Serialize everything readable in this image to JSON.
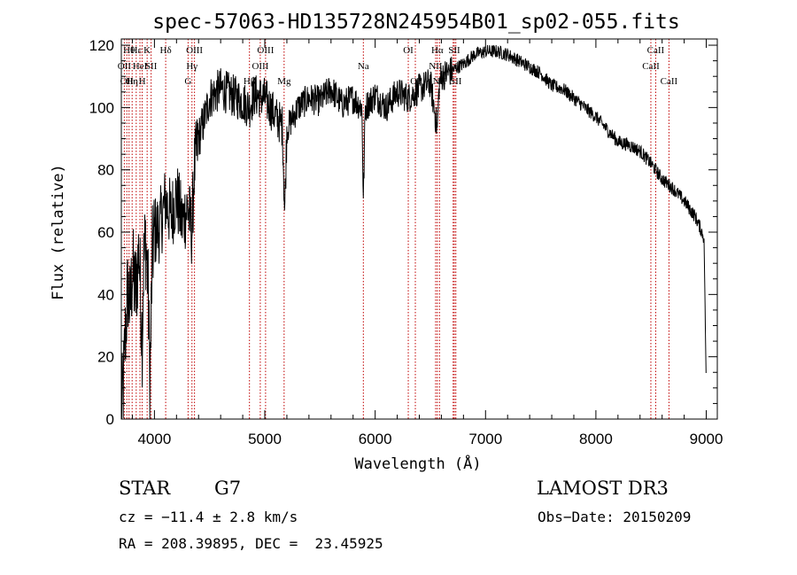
{
  "chart_data": {
    "type": "line",
    "title": "spec-57063-HD135728N245954B01_sp02-055.fits",
    "xlabel": "Wavelength (Å)",
    "ylabel": "Flux (relative)",
    "xlim": [
      3700,
      9100
    ],
    "ylim": [
      0,
      122
    ],
    "xticks": [
      4000,
      5000,
      6000,
      7000,
      8000,
      9000
    ],
    "yticks": [
      0,
      20,
      40,
      60,
      80,
      100,
      120
    ],
    "grid": false,
    "series": [
      {
        "color": "#000000",
        "anchors": [
          [
            3700,
            0
          ],
          [
            3720,
            12
          ],
          [
            3740,
            30
          ],
          [
            3760,
            42
          ],
          [
            3780,
            35
          ],
          [
            3800,
            48
          ],
          [
            3830,
            40
          ],
          [
            3860,
            55
          ],
          [
            3890,
            25
          ],
          [
            3900,
            48
          ],
          [
            3920,
            58
          ],
          [
            3940,
            45
          ],
          [
            3960,
            12
          ],
          [
            3980,
            52
          ],
          [
            4000,
            60
          ],
          [
            4050,
            62
          ],
          [
            4100,
            70
          ],
          [
            4150,
            65
          ],
          [
            4200,
            72
          ],
          [
            4250,
            63
          ],
          [
            4300,
            68
          ],
          [
            4340,
            60
          ],
          [
            4360,
            80
          ],
          [
            4400,
            90
          ],
          [
            4450,
            96
          ],
          [
            4500,
            103
          ],
          [
            4600,
            106
          ],
          [
            4700,
            104
          ],
          [
            4800,
            102
          ],
          [
            4860,
            100
          ],
          [
            4900,
            104
          ],
          [
            5000,
            103
          ],
          [
            5100,
            97
          ],
          [
            5160,
            94
          ],
          [
            5180,
            66
          ],
          [
            5200,
            93
          ],
          [
            5300,
            100
          ],
          [
            5400,
            103
          ],
          [
            5500,
            102
          ],
          [
            5600,
            106
          ],
          [
            5700,
            101
          ],
          [
            5800,
            103
          ],
          [
            5880,
            100
          ],
          [
            5893,
            70
          ],
          [
            5910,
            100
          ],
          [
            6000,
            104
          ],
          [
            6100,
            100
          ],
          [
            6200,
            105
          ],
          [
            6300,
            103
          ],
          [
            6400,
            106
          ],
          [
            6500,
            108
          ],
          [
            6563,
            93
          ],
          [
            6580,
            107
          ],
          [
            6600,
            110
          ],
          [
            6700,
            112
          ],
          [
            6800,
            114
          ],
          [
            6900,
            117
          ],
          [
            7000,
            118
          ],
          [
            7100,
            118
          ],
          [
            7200,
            117
          ],
          [
            7300,
            115
          ],
          [
            7400,
            113
          ],
          [
            7500,
            111
          ],
          [
            7600,
            107
          ],
          [
            7700,
            106
          ],
          [
            7800,
            103
          ],
          [
            7900,
            100
          ],
          [
            8000,
            97
          ],
          [
            8100,
            93
          ],
          [
            8200,
            89
          ],
          [
            8300,
            88
          ],
          [
            8400,
            86
          ],
          [
            8500,
            82
          ],
          [
            8600,
            77
          ],
          [
            8700,
            74
          ],
          [
            8800,
            70
          ],
          [
            8900,
            65
          ],
          [
            8950,
            61
          ],
          [
            8980,
            58
          ],
          [
            9000,
            10
          ]
        ]
      }
    ],
    "line_markers": [
      {
        "wavelength": 3727,
        "label": "OII",
        "row": 1
      },
      {
        "wavelength": 3750,
        "label": "OII",
        "row": 2
      },
      {
        "wavelength": 3770,
        "label": "Hθ",
        "row": 0
      },
      {
        "wavelength": 3798,
        "label": "Hη",
        "row": 2
      },
      {
        "wavelength": 3835,
        "label": "Hε",
        "row": 0
      },
      {
        "wavelength": 3869,
        "label": "HeI",
        "row": 1
      },
      {
        "wavelength": 3889,
        "label": "H",
        "row": 2
      },
      {
        "wavelength": 3934,
        "label": "K",
        "row": 0
      },
      {
        "wavelength": 3970,
        "label": "SII",
        "row": 1
      },
      {
        "wavelength": 4102,
        "label": "Hδ",
        "row": 0
      },
      {
        "wavelength": 4305,
        "label": "G",
        "row": 2
      },
      {
        "wavelength": 4340,
        "label": "Hγ",
        "row": 1
      },
      {
        "wavelength": 4363,
        "label": "OIII",
        "row": 0
      },
      {
        "wavelength": 4861,
        "label": "Hβ",
        "row": 2
      },
      {
        "wavelength": 4959,
        "label": "OIII",
        "row": 1
      },
      {
        "wavelength": 5007,
        "label": "OIII",
        "row": 0
      },
      {
        "wavelength": 5175,
        "label": "Mg",
        "row": 2
      },
      {
        "wavelength": 5893,
        "label": "Na",
        "row": 1
      },
      {
        "wavelength": 6300,
        "label": "OI",
        "row": 0
      },
      {
        "wavelength": 6364,
        "label": "OI",
        "row": 2
      },
      {
        "wavelength": 6548,
        "label": "NII",
        "row": 1
      },
      {
        "wavelength": 6563,
        "label": "Hα",
        "row": 0
      },
      {
        "wavelength": 6583,
        "label": "NII",
        "row": 2
      },
      {
        "wavelength": 6707,
        "label": "Li",
        "row": 1
      },
      {
        "wavelength": 6717,
        "label": "SII",
        "row": 0
      },
      {
        "wavelength": 6731,
        "label": "SII",
        "row": 2
      },
      {
        "wavelength": 8498,
        "label": "CaII",
        "row": 1
      },
      {
        "wavelength": 8542,
        "label": "CaII",
        "row": 0
      },
      {
        "wavelength": 8662,
        "label": "CaII",
        "row": 2
      }
    ],
    "marker_color": "#c00000"
  },
  "info": {
    "object_type": "STAR",
    "subclass": "G7",
    "survey": "LAMOST DR3",
    "cz": "cz = −11.4 ± 2.8 km/s",
    "obs_date": "Obs−Date: 20150209",
    "coords": "RA = 208.39895, DEC =  23.45925"
  }
}
